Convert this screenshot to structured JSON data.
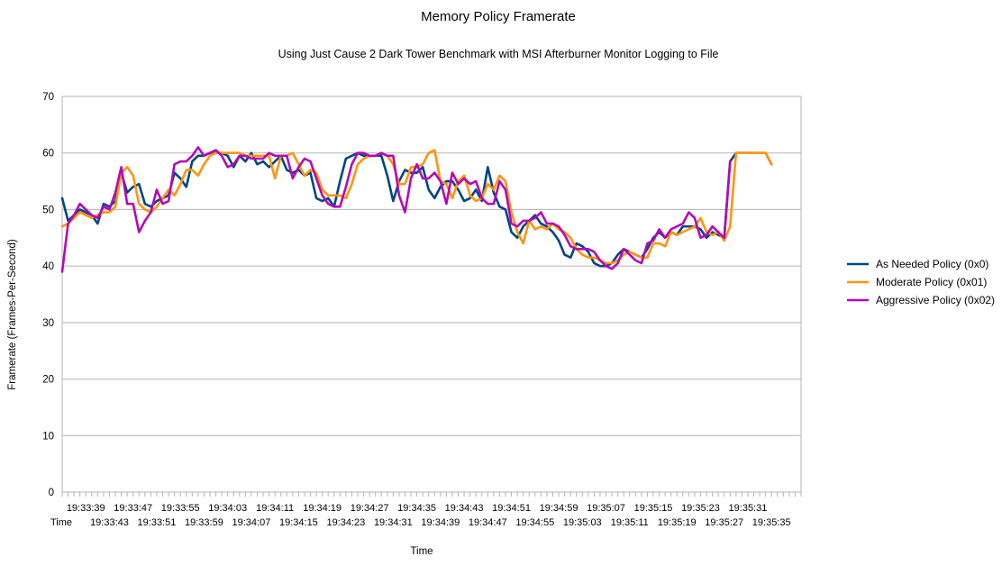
{
  "chart_data": {
    "type": "line",
    "title": "Memory Policy Framerate",
    "subtitle": "Using Just Cause 2 Dark Tower Benchmark with MSI Afterburner Monitor Logging to File",
    "xlabel": "Time",
    "ylabel": "Framerate (Frames-Per-Second)",
    "x_header_label": "Time",
    "ylim": [
      0,
      70
    ],
    "yticks": [
      0,
      10,
      20,
      30,
      40,
      50,
      60,
      70
    ],
    "grid": "horizontal",
    "legend_position": "right",
    "point_count": 126,
    "x_tick_labels_top": [
      "19:33:39",
      "19:33:47",
      "19:33:55",
      "19:34:03",
      "19:34:11",
      "19:34:19",
      "19:34:27",
      "19:34:35",
      "19:34:43",
      "19:34:51",
      "19:34:59",
      "19:35:07",
      "19:35:15",
      "19:35:23",
      "19:35:31"
    ],
    "x_tick_labels_bottom": [
      "19:33:43",
      "19:33:51",
      "19:33:59",
      "19:34:07",
      "19:34:15",
      "19:34:23",
      "19:34:31",
      "19:34:39",
      "19:34:47",
      "19:34:55",
      "19:35:03",
      "19:35:11",
      "19:35:19",
      "19:35:27",
      "19:35:35"
    ],
    "series": [
      {
        "name": "As Needed Policy (0x0)",
        "color": "#004586",
        "values": [
          52,
          48,
          49,
          50,
          49.5,
          49,
          47.5,
          51,
          50.5,
          51.5,
          56.5,
          53,
          54,
          54.5,
          51,
          50.5,
          51.5,
          52,
          52.5,
          56.5,
          55.5,
          54,
          58.5,
          59.5,
          59.5,
          60,
          60,
          60,
          59.5,
          57.5,
          59.5,
          58.5,
          60,
          58,
          58.5,
          57.5,
          58.5,
          59.5,
          57,
          56.5,
          57,
          56,
          56.5,
          52,
          51.5,
          52,
          50.5,
          55,
          59,
          59.5,
          60,
          59.5,
          59.5,
          59.5,
          59.5,
          56,
          51.5,
          55,
          57,
          56.5,
          56.5,
          57.5,
          53.5,
          52,
          54,
          55,
          55,
          53.5,
          51.5,
          52,
          53.5,
          51.5,
          57.5,
          53,
          50.5,
          50,
          46,
          45,
          47,
          48,
          49,
          47.5,
          47,
          46,
          44.5,
          42,
          41.5,
          44,
          43.5,
          42.5,
          40.5,
          40,
          40,
          40.5,
          42,
          43,
          42.5,
          42,
          41.5,
          43,
          45,
          46,
          45,
          46,
          45.5,
          47,
          47,
          47,
          46.5,
          45,
          46,
          45.5,
          45,
          58.5,
          60,
          60,
          60,
          60,
          60,
          60,
          58
        ]
      },
      {
        "name": "Moderate Policy (0x01)",
        "color": "#ff950e",
        "values": [
          47,
          47.5,
          48.5,
          49.5,
          49,
          48.5,
          49,
          49.5,
          49.5,
          50.5,
          56.5,
          57.5,
          56,
          51,
          50,
          49.5,
          50.5,
          52,
          53.5,
          52.5,
          54.5,
          57,
          57,
          56,
          58,
          59.5,
          60,
          60,
          60,
          60,
          60,
          59.5,
          59.5,
          59.5,
          59.5,
          59.5,
          55.5,
          59.5,
          59.5,
          60,
          58,
          56,
          57,
          56.5,
          53.5,
          52.5,
          52.5,
          52.5,
          52,
          54.5,
          58,
          59,
          59.5,
          59.5,
          60,
          59.5,
          58,
          54.5,
          54.5,
          57.5,
          57.5,
          58,
          60,
          60.5,
          55,
          54.5,
          52,
          55,
          56,
          52.5,
          51.5,
          52,
          54.5,
          53.5,
          56,
          55,
          49.5,
          46,
          44,
          48,
          46.5,
          47,
          46.5,
          47.5,
          46.5,
          46,
          45,
          43,
          42,
          41.5,
          41.5,
          41,
          40.5,
          40.5,
          41,
          42,
          42.5,
          42,
          41.5,
          41.5,
          44,
          44,
          43.5,
          46,
          45.5,
          46,
          46.5,
          47,
          48.5,
          46,
          45.5,
          46,
          44.5,
          47,
          60,
          60,
          60,
          60,
          60,
          60,
          58
        ]
      },
      {
        "name": "Aggressive Policy (0x02)",
        "color": "#b40ab4",
        "values": [
          39,
          47.5,
          49,
          51,
          50,
          49,
          48.5,
          50.5,
          50,
          53,
          57.5,
          51,
          51,
          46,
          48,
          49.5,
          53.5,
          51,
          51.5,
          58,
          58.5,
          58.5,
          59.5,
          61,
          59.5,
          60,
          60.5,
          59.5,
          57.5,
          58,
          59.5,
          59.5,
          59,
          59,
          59,
          60,
          59.5,
          59.5,
          59.5,
          55.5,
          57.5,
          59,
          58.5,
          55.5,
          52.5,
          51,
          50.5,
          50.5,
          54,
          58,
          60,
          60,
          59.5,
          59.5,
          60,
          59.5,
          59.5,
          52.5,
          49.5,
          55.5,
          58,
          55.5,
          55.5,
          56.5,
          55,
          51,
          56.5,
          54.5,
          55.5,
          54.5,
          55,
          52,
          51,
          51,
          55,
          53.5,
          47.5,
          47,
          48,
          48,
          48.5,
          49.5,
          47.5,
          47.5,
          47,
          45.5,
          43.5,
          43,
          43,
          43,
          42.5,
          41,
          40,
          39.5,
          40.5,
          43,
          42,
          41,
          40.5,
          44,
          44.5,
          46.5,
          45,
          46.5,
          47,
          47.5,
          49.5,
          48.5,
          45,
          45.5,
          47,
          46,
          45,
          58.5
        ]
      }
    ]
  }
}
